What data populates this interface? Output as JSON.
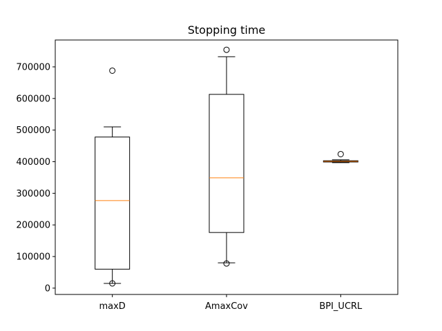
{
  "chart_data": {
    "type": "box",
    "title": "Stopping time",
    "xlabel": "",
    "ylabel": "",
    "categories": [
      "maxD",
      "AmaxCov",
      "BPI_UCRL"
    ],
    "ylim": [
      -20000,
      785000
    ],
    "yticks": [
      0,
      100000,
      200000,
      300000,
      400000,
      500000,
      600000,
      700000
    ],
    "ytick_labels": [
      "0",
      "100000",
      "200000",
      "300000",
      "400000",
      "500000",
      "600000",
      "700000"
    ],
    "grid": false,
    "box_color": "#000000",
    "median_color": "#ff7f0e",
    "boxes": [
      {
        "name": "maxD",
        "whisker_low": 15000,
        "q1": 60000,
        "median": 277000,
        "q3": 478000,
        "whisker_high": 510000,
        "outliers": [
          15000,
          688000
        ]
      },
      {
        "name": "AmaxCov",
        "whisker_low": 80000,
        "q1": 176000,
        "median": 349000,
        "q3": 613000,
        "whisker_high": 732000,
        "outliers": [
          78000,
          754000
        ]
      },
      {
        "name": "BPI_UCRL",
        "whisker_low": 397000,
        "q1": 399000,
        "median": 401000,
        "q3": 403000,
        "whisker_high": 406000,
        "outliers": [
          424000
        ]
      }
    ]
  }
}
